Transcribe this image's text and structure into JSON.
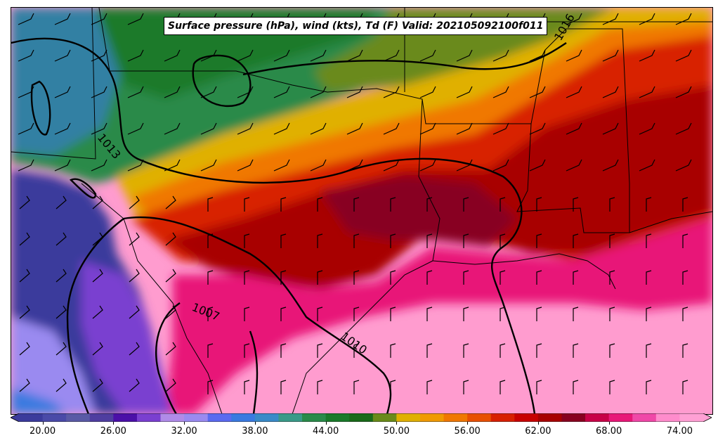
{
  "title": "Surface pressure (hPa), wind (kts), Td (F) Valid: 202105092100f011",
  "colorbar": {
    "min": 18,
    "max": 76,
    "step": 2,
    "tick_labels": [
      "20.00",
      "26.00",
      "32.00",
      "38.00",
      "44.00",
      "50.00",
      "56.00",
      "62.00",
      "68.00",
      "74.00"
    ],
    "colors": [
      "#3b3b9c",
      "#4a4aa8",
      "#5a5aa6",
      "#4f3ea0",
      "#4b10a8",
      "#7a3fd0",
      "#b08be8",
      "#9a8af0",
      "#5a6af0",
      "#3a7ae0",
      "#3a8ac8",
      "#3a9a88",
      "#2a8a4a",
      "#1a7a2a",
      "#1a6a1a",
      "#6a8a1a",
      "#e0b000",
      "#f09a00",
      "#f07800",
      "#e85000",
      "#d82000",
      "#c80000",
      "#a80000",
      "#880020",
      "#c80048",
      "#e81878",
      "#f048a8",
      "#ff8ccc",
      "#ffa0d4"
    ]
  },
  "isobars": [
    {
      "label": "1013"
    },
    {
      "label": "1016"
    },
    {
      "label": "1007"
    },
    {
      "label": "1010"
    }
  ]
}
